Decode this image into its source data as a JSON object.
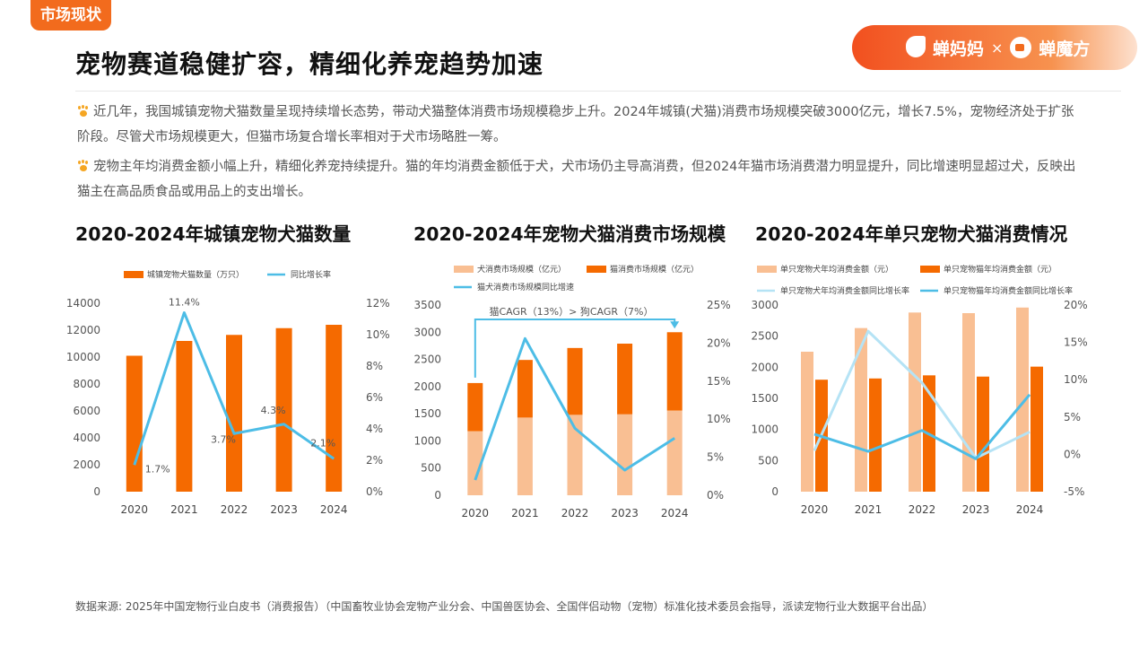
{
  "header": {
    "tag": "市场现状",
    "title": "宠物赛道稳健扩容，精细化养宠趋势加速",
    "brand_left": "蝉妈妈",
    "brand_sep": "×",
    "brand_right": "蝉魔方"
  },
  "bullets": [
    "近几年，我国城镇宠物犬猫数量呈现持续增长态势，带动犬猫整体消费市场规模稳步上升。2024年城镇(犬猫)消费市场规模突破3000亿元，增长7.5%，宠物经济处于扩张阶段。尽管犬市场规模更大，但猫市场复合增长率相对于犬市场略胜一筹。",
    "宠物主年均消费金额小幅上升，精细化养宠持续提升。猫的年均消费金额低于犬，犬市场仍主导高消费，但2024年猫市场消费潜力明显提升，同比增速明显超过犬，反映出猫主在高品质食品或用品上的支出增长。"
  ],
  "source": "数据来源: 2025年中国宠物行业白皮书（消费报告）（中国畜牧业协会宠物产业分会、中国兽医协会、全国伴侣动物（宠物）标准化技术委员会指导，派读宠物行业大数据平台出品）",
  "colors": {
    "orange": "#f56a00",
    "peach": "#f9bf93",
    "blue": "#4dbde6",
    "lightblue": "#b5e3f5"
  },
  "chart_data": [
    {
      "type": "bar",
      "title": "2020-2024年城镇宠物犬猫数量",
      "categories": [
        "2020",
        "2021",
        "2022",
        "2023",
        "2024"
      ],
      "series": [
        {
          "name": "城镇宠物犬猫数量（万只）",
          "kind": "bar",
          "axis": "left",
          "values": [
            10100,
            11200,
            11650,
            12150,
            12400
          ]
        },
        {
          "name": "同比增长率",
          "kind": "line",
          "axis": "right",
          "values": [
            1.7,
            11.4,
            3.7,
            4.3,
            2.1
          ],
          "labels": [
            "1.7%",
            "11.4%",
            "3.7%",
            "4.3%",
            "2.1%"
          ]
        }
      ],
      "yticks_left": [
        "0",
        "2000",
        "4000",
        "6000",
        "8000",
        "10000",
        "12000",
        "14000"
      ],
      "yticks_right": [
        "0%",
        "2%",
        "4%",
        "6%",
        "8%",
        "10%",
        "12%"
      ],
      "ylim_left": [
        0,
        14000
      ],
      "ylim_right": [
        0,
        12
      ],
      "legend_position": "top"
    },
    {
      "type": "bar",
      "title": "2020-2024年宠物犬猫消费市场规模",
      "categories": [
        "2020",
        "2021",
        "2022",
        "2023",
        "2024"
      ],
      "series": [
        {
          "name": "犬消费市场规模（亿元）",
          "kind": "stack",
          "axis": "left",
          "values": [
            1180,
            1430,
            1480,
            1490,
            1560
          ]
        },
        {
          "name": "猫消费市场规模（亿元）",
          "kind": "stack",
          "axis": "left",
          "values": [
            885,
            1060,
            1230,
            1300,
            1440
          ]
        },
        {
          "name": "猫犬消费市场规模同比增速",
          "kind": "line",
          "axis": "right",
          "values": [
            2,
            20.6,
            8.8,
            3.3,
            7.5
          ]
        }
      ],
      "annotation": "猫CAGR（13%）> 狗CAGR（7%）",
      "yticks_left": [
        "0",
        "500",
        "1000",
        "1500",
        "2000",
        "2500",
        "3000",
        "3500"
      ],
      "yticks_right": [
        "0%",
        "5%",
        "10%",
        "15%",
        "20%",
        "25%"
      ],
      "ylim_left": [
        0,
        3500
      ],
      "ylim_right": [
        0,
        25
      ],
      "legend_position": "top"
    },
    {
      "type": "bar",
      "title": "2020-2024年单只宠物犬猫消费情况",
      "categories": [
        "2020",
        "2021",
        "2022",
        "2023",
        "2024"
      ],
      "series": [
        {
          "name": "单只宠物犬年均消费金额（元）",
          "kind": "bar",
          "axis": "left",
          "values": [
            2250,
            2630,
            2880,
            2870,
            2960
          ]
        },
        {
          "name": "单只宠物猫年均消费金额（元）",
          "kind": "bar",
          "axis": "left",
          "values": [
            1800,
            1820,
            1870,
            1850,
            2010
          ]
        },
        {
          "name": "单只宠物犬年均消费金额同比增长率",
          "kind": "line",
          "axis": "right",
          "values": [
            0.5,
            16.5,
            9.6,
            -0.5,
            3
          ]
        },
        {
          "name": "单只宠物猫年均消费金额同比增长率",
          "kind": "line",
          "axis": "right",
          "values": [
            2.7,
            0.4,
            3.2,
            -0.6,
            8
          ]
        }
      ],
      "yticks_left": [
        "0",
        "500",
        "1000",
        "1500",
        "2000",
        "2500",
        "3000"
      ],
      "yticks_right": [
        "-5%",
        "0%",
        "5%",
        "10%",
        "15%",
        "20%"
      ],
      "ylim_left": [
        0,
        3000
      ],
      "ylim_right": [
        -5,
        20
      ],
      "legend_position": "top"
    }
  ]
}
